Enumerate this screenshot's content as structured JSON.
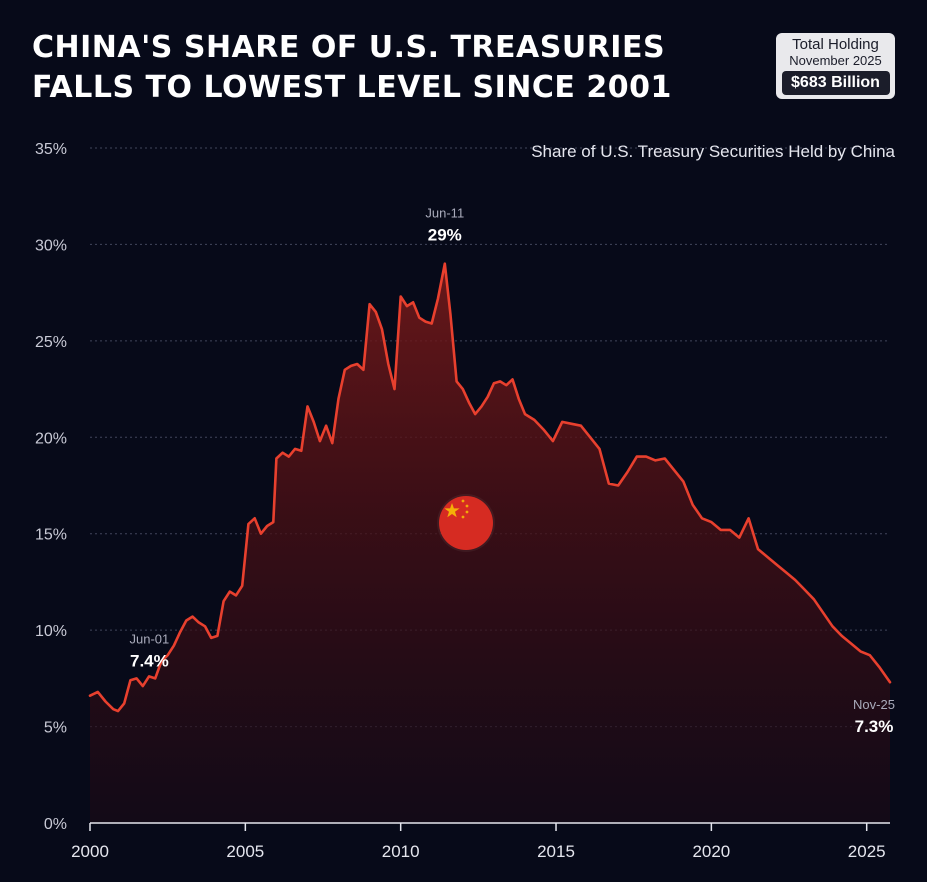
{
  "title": {
    "line1": "China's Share of U.S. Treasuries",
    "line2": "Falls to Lowest Level Since 2001"
  },
  "holding_badge": {
    "label": "Total Holding",
    "date": "November 2025",
    "value": "$683 Billion"
  },
  "colors": {
    "background": "#070a19",
    "line": "#e8402e",
    "flag": "#d62b22",
    "star": "#ffde00"
  },
  "icons": {
    "flag": "china-flag-icon"
  },
  "chart_data": {
    "type": "area",
    "title": "Share of U.S. Treasury Securities Held by China",
    "xlabel": "",
    "ylabel": "",
    "xlim": [
      2000,
      2025.75
    ],
    "ylim": [
      0,
      35
    ],
    "x_ticks": [
      2000,
      2005,
      2010,
      2015,
      2020,
      2025
    ],
    "x_tick_labels": [
      "2000",
      "2005",
      "2010",
      "2015",
      "2020",
      "2025"
    ],
    "y_ticks": [
      0,
      5,
      10,
      15,
      20,
      25,
      30,
      35
    ],
    "y_tick_labels": [
      "0%",
      "5%",
      "10%",
      "15%",
      "20%",
      "25%",
      "30%",
      "35%"
    ],
    "grid": true,
    "series": [
      {
        "name": "China share of U.S. Treasuries (%)",
        "x": [
          2000.0,
          2000.25,
          2000.5,
          2000.75,
          2000.9,
          2001.1,
          2001.3,
          2001.5,
          2001.7,
          2001.9,
          2002.1,
          2002.3,
          2002.5,
          2002.7,
          2002.9,
          2003.1,
          2003.3,
          2003.5,
          2003.7,
          2003.9,
          2004.1,
          2004.3,
          2004.5,
          2004.7,
          2004.9,
          2005.1,
          2005.3,
          2005.5,
          2005.7,
          2005.9,
          2006.0,
          2006.2,
          2006.4,
          2006.6,
          2006.8,
          2007.0,
          2007.2,
          2007.4,
          2007.6,
          2007.8,
          2008.0,
          2008.2,
          2008.4,
          2008.6,
          2008.8,
          2009.0,
          2009.2,
          2009.4,
          2009.6,
          2009.8,
          2010.0,
          2010.2,
          2010.4,
          2010.6,
          2010.8,
          2011.0,
          2011.2,
          2011.42,
          2011.6,
          2011.8,
          2012.0,
          2012.2,
          2012.4,
          2012.6,
          2012.8,
          2013.0,
          2013.2,
          2013.4,
          2013.6,
          2013.8,
          2014.0,
          2014.3,
          2014.6,
          2014.9,
          2015.2,
          2015.5,
          2015.8,
          2016.1,
          2016.4,
          2016.7,
          2017.0,
          2017.3,
          2017.6,
          2017.9,
          2018.2,
          2018.5,
          2018.8,
          2019.1,
          2019.4,
          2019.7,
          2020.0,
          2020.3,
          2020.6,
          2020.9,
          2021.2,
          2021.5,
          2021.8,
          2022.1,
          2022.4,
          2022.7,
          2023.0,
          2023.3,
          2023.6,
          2023.9,
          2024.2,
          2024.5,
          2024.8,
          2025.1,
          2025.4,
          2025.75
        ],
        "y": [
          6.6,
          6.8,
          6.3,
          5.9,
          5.8,
          6.2,
          7.4,
          7.5,
          7.1,
          7.6,
          7.5,
          8.4,
          8.7,
          9.2,
          9.9,
          10.5,
          10.7,
          10.4,
          10.2,
          9.6,
          9.7,
          11.5,
          12.0,
          11.8,
          12.3,
          15.5,
          15.8,
          15.0,
          15.4,
          15.6,
          18.9,
          19.2,
          19.0,
          19.4,
          19.3,
          21.6,
          20.8,
          19.8,
          20.6,
          19.7,
          22.0,
          23.5,
          23.7,
          23.8,
          23.5,
          26.9,
          26.5,
          25.6,
          23.8,
          22.5,
          27.3,
          26.8,
          27.0,
          26.2,
          26.0,
          25.9,
          27.2,
          29.0,
          26.4,
          22.9,
          22.5,
          21.8,
          21.2,
          21.6,
          22.1,
          22.8,
          22.9,
          22.7,
          23.0,
          22.0,
          21.2,
          20.9,
          20.4,
          19.8,
          20.8,
          20.7,
          20.6,
          20.0,
          19.4,
          17.6,
          17.5,
          18.2,
          19.0,
          19.0,
          18.8,
          18.9,
          18.3,
          17.7,
          16.5,
          15.8,
          15.6,
          15.2,
          15.2,
          14.8,
          15.8,
          14.2,
          13.8,
          13.4,
          13.0,
          12.6,
          12.1,
          11.6,
          10.9,
          10.2,
          9.7,
          9.3,
          8.9,
          8.7,
          8.1,
          7.3
        ]
      }
    ],
    "annotations": [
      {
        "date": "Jun-01",
        "value": "7.4%",
        "x": 2001.3,
        "y": 7.4
      },
      {
        "date": "Jun-11",
        "value": "29%",
        "x": 2011.42,
        "y": 29.0
      },
      {
        "date": "Nov-25",
        "value": "7.3%",
        "x": 2025.75,
        "y": 7.3
      }
    ]
  }
}
